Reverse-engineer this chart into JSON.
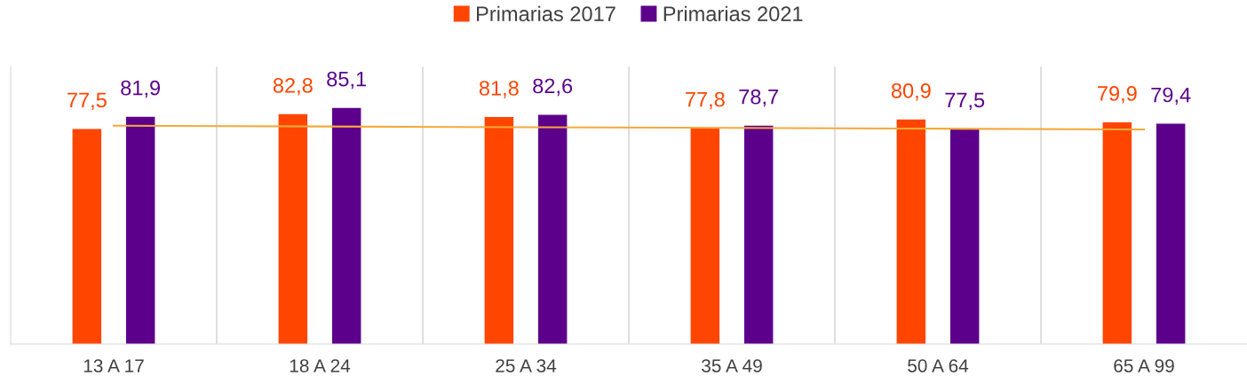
{
  "chart_data": {
    "type": "bar",
    "categories": [
      "13 A 17",
      "18 A 24",
      "25 A 34",
      "35 A 49",
      "50 A 64",
      "65 A 99"
    ],
    "series": [
      {
        "name": "Primarias 2017",
        "color": "#ff4500",
        "values": [
          77.5,
          82.8,
          81.8,
          77.8,
          80.9,
          79.9
        ],
        "value_labels": [
          "77,5",
          "82,8",
          "81,8",
          "77,8",
          "80,9",
          "79,9"
        ]
      },
      {
        "name": "Primarias 2021",
        "color": "#5c008c",
        "values": [
          81.9,
          85.1,
          82.6,
          78.7,
          77.5,
          79.4
        ],
        "value_labels": [
          "81,9",
          "85,1",
          "82,6",
          "78,7",
          "77,5",
          "79,4"
        ]
      },
      {
        "type": "line",
        "color": "#f5a93a",
        "values": [
          78.7,
          78.4,
          78.1,
          77.9,
          77.6,
          77.3
        ]
      }
    ],
    "ylim": [
      0,
      100
    ],
    "tick_labels": "x",
    "grid": "x",
    "legend": "top"
  }
}
